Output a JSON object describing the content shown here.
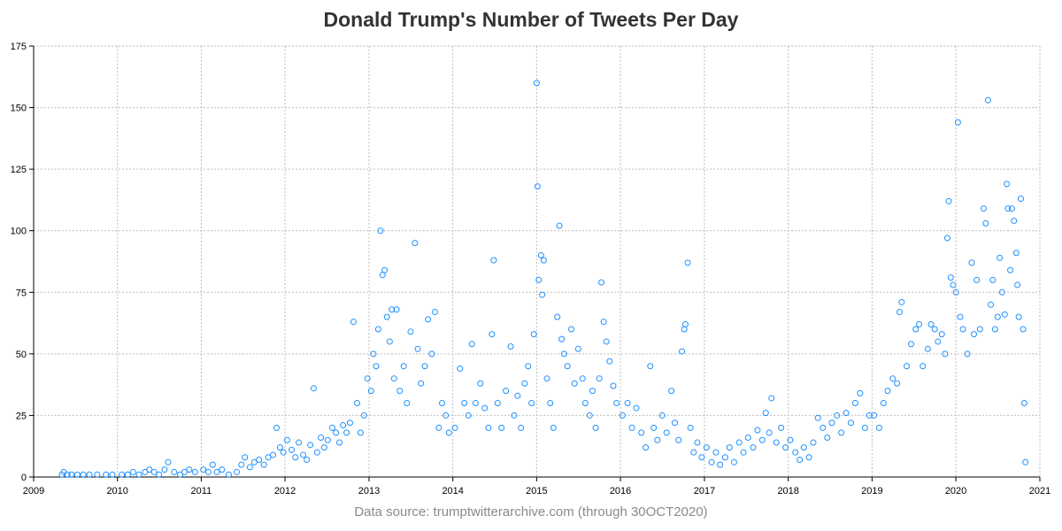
{
  "chart_data": {
    "type": "scatter",
    "title": "Donald Trump's Number of Tweets Per Day",
    "footnote": "Data source: trumptwitterarchive.com (through 30OCT2020)",
    "xlabel": "",
    "ylabel": "",
    "x_axis": {
      "type": "date",
      "range": [
        "2009-01-01",
        "2021-01-01"
      ],
      "tick_labels": [
        "2009",
        "2010",
        "2011",
        "2012",
        "2013",
        "2014",
        "2015",
        "2016",
        "2017",
        "2018",
        "2019",
        "2020",
        "2021"
      ]
    },
    "y_axis": {
      "range": [
        0,
        175
      ],
      "ticks": [
        0,
        25,
        50,
        75,
        100,
        125,
        150,
        175
      ]
    },
    "grid": true,
    "marker": {
      "shape": "open-circle",
      "color": "#1e90ff"
    },
    "series": [
      {
        "values": [
          [
            "2009-05-04",
            1
          ],
          [
            "2009-05-12",
            2
          ],
          [
            "2009-05-28",
            1
          ],
          [
            "2009-06-15",
            1
          ],
          [
            "2009-07-10",
            1
          ],
          [
            "2009-08-05",
            1
          ],
          [
            "2009-09-01",
            1
          ],
          [
            "2009-10-05",
            1
          ],
          [
            "2009-11-12",
            1
          ],
          [
            "2009-12-10",
            1
          ],
          [
            "2010-01-20",
            1
          ],
          [
            "2010-02-15",
            1
          ],
          [
            "2010-03-10",
            2
          ],
          [
            "2010-04-05",
            1
          ],
          [
            "2010-05-01",
            2
          ],
          [
            "2010-05-20",
            3
          ],
          [
            "2010-06-10",
            2
          ],
          [
            "2010-07-01",
            1
          ],
          [
            "2010-07-25",
            3
          ],
          [
            "2010-08-10",
            6
          ],
          [
            "2010-09-05",
            2
          ],
          [
            "2010-10-01",
            1
          ],
          [
            "2010-10-20",
            2
          ],
          [
            "2010-11-10",
            3
          ],
          [
            "2010-12-05",
            2
          ],
          [
            "2011-01-10",
            3
          ],
          [
            "2011-02-01",
            2
          ],
          [
            "2011-02-20",
            5
          ],
          [
            "2011-03-10",
            2
          ],
          [
            "2011-04-01",
            3
          ],
          [
            "2011-05-01",
            1
          ],
          [
            "2011-06-05",
            2
          ],
          [
            "2011-06-25",
            5
          ],
          [
            "2011-07-10",
            8
          ],
          [
            "2011-08-01",
            4
          ],
          [
            "2011-08-20",
            6
          ],
          [
            "2011-09-10",
            7
          ],
          [
            "2011-10-01",
            5
          ],
          [
            "2011-10-20",
            8
          ],
          [
            "2011-11-10",
            9
          ],
          [
            "2011-11-25",
            20
          ],
          [
            "2011-12-10",
            12
          ],
          [
            "2011-12-25",
            10
          ],
          [
            "2012-01-10",
            15
          ],
          [
            "2012-01-30",
            11
          ],
          [
            "2012-02-15",
            8
          ],
          [
            "2012-03-01",
            14
          ],
          [
            "2012-03-20",
            9
          ],
          [
            "2012-04-05",
            7
          ],
          [
            "2012-04-20",
            13
          ],
          [
            "2012-05-05",
            36
          ],
          [
            "2012-05-20",
            10
          ],
          [
            "2012-06-05",
            16
          ],
          [
            "2012-06-20",
            12
          ],
          [
            "2012-07-05",
            15
          ],
          [
            "2012-07-25",
            20
          ],
          [
            "2012-08-10",
            18
          ],
          [
            "2012-08-25",
            14
          ],
          [
            "2012-09-10",
            21
          ],
          [
            "2012-09-25",
            18
          ],
          [
            "2012-10-10",
            22
          ],
          [
            "2012-10-25",
            63
          ],
          [
            "2012-11-10",
            30
          ],
          [
            "2012-11-25",
            18
          ],
          [
            "2012-12-10",
            25
          ],
          [
            "2012-12-25",
            40
          ],
          [
            "2013-01-10",
            35
          ],
          [
            "2013-01-20",
            50
          ],
          [
            "2013-02-01",
            45
          ],
          [
            "2013-02-10",
            60
          ],
          [
            "2013-02-20",
            100
          ],
          [
            "2013-03-01",
            82
          ],
          [
            "2013-03-10",
            84
          ],
          [
            "2013-03-20",
            65
          ],
          [
            "2013-04-01",
            55
          ],
          [
            "2013-04-10",
            68
          ],
          [
            "2013-04-20",
            40
          ],
          [
            "2013-05-01",
            68
          ],
          [
            "2013-05-15",
            35
          ],
          [
            "2013-06-01",
            45
          ],
          [
            "2013-06-15",
            30
          ],
          [
            "2013-07-01",
            59
          ],
          [
            "2013-07-20",
            95
          ],
          [
            "2013-08-01",
            52
          ],
          [
            "2013-08-15",
            38
          ],
          [
            "2013-09-01",
            45
          ],
          [
            "2013-09-15",
            64
          ],
          [
            "2013-10-01",
            50
          ],
          [
            "2013-10-15",
            67
          ],
          [
            "2013-11-01",
            20
          ],
          [
            "2013-11-15",
            30
          ],
          [
            "2013-12-01",
            25
          ],
          [
            "2013-12-15",
            18
          ],
          [
            "2014-01-10",
            20
          ],
          [
            "2014-02-01",
            44
          ],
          [
            "2014-02-20",
            30
          ],
          [
            "2014-03-10",
            25
          ],
          [
            "2014-03-25",
            54
          ],
          [
            "2014-04-10",
            30
          ],
          [
            "2014-05-01",
            38
          ],
          [
            "2014-05-20",
            28
          ],
          [
            "2014-06-05",
            20
          ],
          [
            "2014-06-20",
            58
          ],
          [
            "2014-06-28",
            88
          ],
          [
            "2014-07-15",
            30
          ],
          [
            "2014-08-01",
            20
          ],
          [
            "2014-08-20",
            35
          ],
          [
            "2014-09-10",
            53
          ],
          [
            "2014-09-25",
            25
          ],
          [
            "2014-10-10",
            33
          ],
          [
            "2014-10-25",
            20
          ],
          [
            "2014-11-10",
            38
          ],
          [
            "2014-11-25",
            45
          ],
          [
            "2014-12-10",
            30
          ],
          [
            "2014-12-20",
            58
          ],
          [
            "2015-01-01",
            160
          ],
          [
            "2015-01-05",
            118
          ],
          [
            "2015-01-10",
            80
          ],
          [
            "2015-01-20",
            90
          ],
          [
            "2015-01-25",
            74
          ],
          [
            "2015-02-01",
            88
          ],
          [
            "2015-02-15",
            40
          ],
          [
            "2015-03-01",
            30
          ],
          [
            "2015-03-15",
            20
          ],
          [
            "2015-04-01",
            65
          ],
          [
            "2015-04-10",
            102
          ],
          [
            "2015-04-20",
            56
          ],
          [
            "2015-05-01",
            50
          ],
          [
            "2015-05-15",
            45
          ],
          [
            "2015-06-01",
            60
          ],
          [
            "2015-06-15",
            38
          ],
          [
            "2015-07-01",
            52
          ],
          [
            "2015-07-20",
            40
          ],
          [
            "2015-08-01",
            30
          ],
          [
            "2015-08-20",
            25
          ],
          [
            "2015-09-01",
            35
          ],
          [
            "2015-09-15",
            20
          ],
          [
            "2015-10-01",
            40
          ],
          [
            "2015-10-10",
            79
          ],
          [
            "2015-10-20",
            63
          ],
          [
            "2015-11-01",
            55
          ],
          [
            "2015-11-15",
            47
          ],
          [
            "2015-12-01",
            37
          ],
          [
            "2015-12-15",
            30
          ],
          [
            "2016-01-10",
            25
          ],
          [
            "2016-02-01",
            30
          ],
          [
            "2016-02-20",
            20
          ],
          [
            "2016-03-10",
            28
          ],
          [
            "2016-04-01",
            18
          ],
          [
            "2016-04-20",
            12
          ],
          [
            "2016-05-10",
            45
          ],
          [
            "2016-05-25",
            20
          ],
          [
            "2016-06-10",
            15
          ],
          [
            "2016-07-01",
            25
          ],
          [
            "2016-07-20",
            18
          ],
          [
            "2016-08-10",
            35
          ],
          [
            "2016-08-25",
            22
          ],
          [
            "2016-09-10",
            15
          ],
          [
            "2016-09-25",
            51
          ],
          [
            "2016-10-05",
            60
          ],
          [
            "2016-10-10",
            62
          ],
          [
            "2016-10-20",
            87
          ],
          [
            "2016-11-01",
            20
          ],
          [
            "2016-11-15",
            10
          ],
          [
            "2016-12-01",
            14
          ],
          [
            "2016-12-20",
            8
          ],
          [
            "2017-01-10",
            12
          ],
          [
            "2017-02-01",
            6
          ],
          [
            "2017-02-20",
            10
          ],
          [
            "2017-03-10",
            5
          ],
          [
            "2017-04-01",
            8
          ],
          [
            "2017-04-20",
            12
          ],
          [
            "2017-05-10",
            6
          ],
          [
            "2017-06-01",
            14
          ],
          [
            "2017-06-20",
            10
          ],
          [
            "2017-07-10",
            16
          ],
          [
            "2017-08-01",
            12
          ],
          [
            "2017-08-20",
            19
          ],
          [
            "2017-09-10",
            15
          ],
          [
            "2017-09-25",
            26
          ],
          [
            "2017-10-10",
            18
          ],
          [
            "2017-10-20",
            32
          ],
          [
            "2017-11-10",
            14
          ],
          [
            "2017-12-01",
            20
          ],
          [
            "2017-12-20",
            12
          ],
          [
            "2018-01-10",
            15
          ],
          [
            "2018-02-01",
            10
          ],
          [
            "2018-02-20",
            7
          ],
          [
            "2018-03-10",
            12
          ],
          [
            "2018-04-01",
            8
          ],
          [
            "2018-04-20",
            14
          ],
          [
            "2018-05-10",
            24
          ],
          [
            "2018-06-01",
            20
          ],
          [
            "2018-06-20",
            16
          ],
          [
            "2018-07-10",
            22
          ],
          [
            "2018-08-01",
            25
          ],
          [
            "2018-08-20",
            18
          ],
          [
            "2018-09-10",
            26
          ],
          [
            "2018-10-01",
            22
          ],
          [
            "2018-10-20",
            30
          ],
          [
            "2018-11-10",
            34
          ],
          [
            "2018-12-01",
            20
          ],
          [
            "2018-12-20",
            25
          ],
          [
            "2019-01-10",
            25
          ],
          [
            "2019-02-01",
            20
          ],
          [
            "2019-02-20",
            30
          ],
          [
            "2019-03-10",
            35
          ],
          [
            "2019-04-01",
            40
          ],
          [
            "2019-04-20",
            38
          ],
          [
            "2019-05-01",
            67
          ],
          [
            "2019-05-10",
            71
          ],
          [
            "2019-06-01",
            45
          ],
          [
            "2019-06-20",
            54
          ],
          [
            "2019-07-10",
            60
          ],
          [
            "2019-07-25",
            62
          ],
          [
            "2019-08-10",
            45
          ],
          [
            "2019-09-01",
            52
          ],
          [
            "2019-09-15",
            62
          ],
          [
            "2019-10-01",
            60
          ],
          [
            "2019-10-15",
            55
          ],
          [
            "2019-11-01",
            58
          ],
          [
            "2019-11-15",
            50
          ],
          [
            "2019-11-25",
            97
          ],
          [
            "2019-12-01",
            112
          ],
          [
            "2019-12-10",
            81
          ],
          [
            "2019-12-20",
            78
          ],
          [
            "2020-01-01",
            75
          ],
          [
            "2020-01-10",
            144
          ],
          [
            "2020-01-20",
            65
          ],
          [
            "2020-02-01",
            60
          ],
          [
            "2020-02-20",
            50
          ],
          [
            "2020-03-10",
            87
          ],
          [
            "2020-03-20",
            58
          ],
          [
            "2020-04-01",
            80
          ],
          [
            "2020-04-15",
            60
          ],
          [
            "2020-05-01",
            109
          ],
          [
            "2020-05-10",
            103
          ],
          [
            "2020-05-20",
            153
          ],
          [
            "2020-06-01",
            70
          ],
          [
            "2020-06-10",
            80
          ],
          [
            "2020-06-20",
            60
          ],
          [
            "2020-07-01",
            65
          ],
          [
            "2020-07-10",
            89
          ],
          [
            "2020-07-20",
            75
          ],
          [
            "2020-08-01",
            66
          ],
          [
            "2020-08-10",
            119
          ],
          [
            "2020-08-15",
            109
          ],
          [
            "2020-08-25",
            84
          ],
          [
            "2020-09-01",
            109
          ],
          [
            "2020-09-10",
            104
          ],
          [
            "2020-09-20",
            91
          ],
          [
            "2020-09-25",
            78
          ],
          [
            "2020-10-01",
            65
          ],
          [
            "2020-10-10",
            113
          ],
          [
            "2020-10-20",
            60
          ],
          [
            "2020-10-25",
            30
          ],
          [
            "2020-10-30",
            6
          ]
        ]
      }
    ]
  }
}
